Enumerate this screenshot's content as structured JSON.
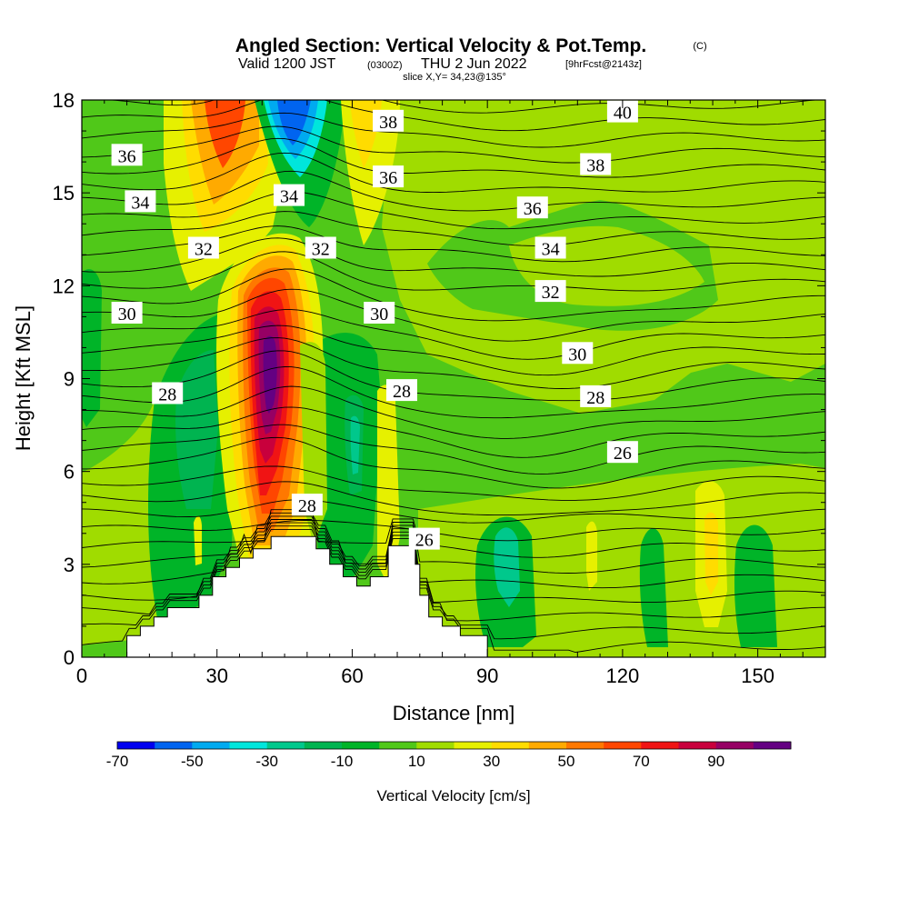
{
  "title": {
    "main": "Angled Section: Vertical Velocity & Pot.Temp.",
    "copyright": "(C)",
    "valid_prefix": "Valid 1200 JST",
    "valid_utc": "(0300Z)",
    "valid_date": "THU 2 Jun 2022",
    "forecast": "[9hrFcst@2143z]",
    "slice": "slice X,Y= 34,23@135°"
  },
  "chart_data": {
    "type": "heatmap",
    "xlabel": "Distance [nm]",
    "ylabel": "Height [Kft MSL]",
    "xlim": [
      0,
      165
    ],
    "ylim": [
      0,
      18
    ],
    "x_ticks": [
      "0",
      "30",
      "60",
      "90",
      "120",
      "150"
    ],
    "y_ticks": [
      "0",
      "3",
      "6",
      "9",
      "12",
      "15",
      "18"
    ],
    "grid": false,
    "terrain_height_kft": [
      [
        10,
        0.7
      ],
      [
        13,
        0.7
      ],
      [
        13,
        1.0
      ],
      [
        16,
        1.0
      ],
      [
        16,
        1.3
      ],
      [
        19,
        1.3
      ],
      [
        19,
        1.6
      ],
      [
        26,
        1.6
      ],
      [
        26,
        2.0
      ],
      [
        29,
        2.0
      ],
      [
        29,
        2.6
      ],
      [
        32,
        2.6
      ],
      [
        32,
        2.9
      ],
      [
        35,
        2.9
      ],
      [
        35,
        3.2
      ],
      [
        38,
        3.2
      ],
      [
        38,
        3.5
      ],
      [
        42,
        3.5
      ],
      [
        42,
        3.9
      ],
      [
        52,
        3.9
      ],
      [
        52,
        3.5
      ],
      [
        55,
        3.5
      ],
      [
        55,
        3.0
      ],
      [
        58,
        3.0
      ],
      [
        58,
        2.6
      ],
      [
        61,
        2.6
      ],
      [
        61,
        2.3
      ],
      [
        64,
        2.3
      ],
      [
        64,
        2.6
      ],
      [
        68,
        2.6
      ],
      [
        68,
        3.6
      ],
      [
        74,
        3.6
      ],
      [
        74,
        3.0
      ],
      [
        75,
        3.0
      ],
      [
        75,
        2.0
      ],
      [
        77,
        2.0
      ],
      [
        77,
        1.3
      ],
      [
        80,
        1.3
      ],
      [
        80,
        1.0
      ],
      [
        84,
        1.0
      ],
      [
        84,
        0.7
      ],
      [
        90,
        0.7
      ]
    ],
    "contour_labels": [
      {
        "value": "36",
        "x": 10,
        "y": 16.2
      },
      {
        "value": "34",
        "x": 13,
        "y": 14.7
      },
      {
        "value": "32",
        "x": 27,
        "y": 13.2
      },
      {
        "value": "30",
        "x": 10,
        "y": 11.1
      },
      {
        "value": "28",
        "x": 19,
        "y": 8.5
      },
      {
        "value": "34",
        "x": 46,
        "y": 14.9
      },
      {
        "value": "32",
        "x": 53,
        "y": 13.2
      },
      {
        "value": "30",
        "x": 66,
        "y": 11.1
      },
      {
        "value": "28",
        "x": 71,
        "y": 8.6
      },
      {
        "value": "38",
        "x": 68,
        "y": 17.3
      },
      {
        "value": "36",
        "x": 68,
        "y": 15.5
      },
      {
        "value": "40",
        "x": 120,
        "y": 17.6
      },
      {
        "value": "38",
        "x": 114,
        "y": 15.9
      },
      {
        "value": "36",
        "x": 100,
        "y": 14.5
      },
      {
        "value": "34",
        "x": 104,
        "y": 13.2
      },
      {
        "value": "32",
        "x": 104,
        "y": 11.8
      },
      {
        "value": "30",
        "x": 110,
        "y": 9.8
      },
      {
        "value": "28",
        "x": 114,
        "y": 8.4
      },
      {
        "value": "26",
        "x": 120,
        "y": 6.6
      },
      {
        "value": "28",
        "x": 50,
        "y": 4.9
      },
      {
        "value": "26",
        "x": 76,
        "y": 3.8
      }
    ]
  },
  "colorbar": {
    "label": "Vertical Velocity [cm/s]",
    "tick_labels": [
      "-70",
      "-50",
      "-30",
      "-10",
      "10",
      "30",
      "50",
      "70",
      "90"
    ],
    "colors": [
      "#0000f0",
      "#0064f0",
      "#00aaf0",
      "#00e6dc",
      "#00c88c",
      "#00b450",
      "#00b428",
      "#50c819",
      "#a0dc00",
      "#e6f000",
      "#ffdc00",
      "#ffaa00",
      "#ff7800",
      "#ff4600",
      "#f01414",
      "#c8003c",
      "#960064",
      "#640082"
    ]
  }
}
